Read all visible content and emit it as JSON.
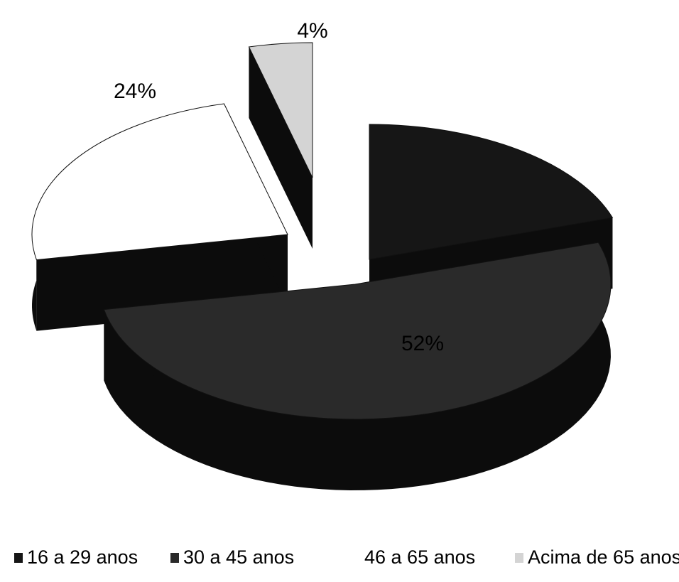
{
  "chart_data": {
    "type": "pie",
    "categories": [
      "16 a 29 anos",
      "30 a 45 anos",
      "46 a 65 anos",
      "Acima de 65 anos"
    ],
    "values": [
      20,
      52,
      24,
      4
    ],
    "value_labels": [
      null,
      "52%",
      "24%",
      "4%"
    ],
    "colors": [
      "#161616",
      "#2a2a2a",
      "#ffffff",
      "#d4d4d4"
    ],
    "legend": "bottom"
  }
}
